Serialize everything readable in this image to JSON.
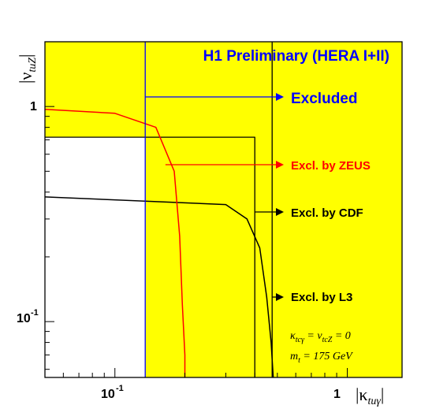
{
  "chart_data": {
    "type": "line",
    "title": "H1 Preliminary (HERA I+II)",
    "xlabel": "|κtuγ|",
    "ylabel": "|νtuZ|",
    "xscale": "log",
    "yscale": "log",
    "xlim": [
      0.05,
      1.72
    ],
    "ylim": [
      0.055,
      2.0
    ],
    "x_ticks": [
      {
        "value": 0.1,
        "label": "10",
        "exp": "-1"
      },
      {
        "value": 1,
        "label": "1",
        "exp": ""
      }
    ],
    "y_ticks": [
      {
        "value": 0.1,
        "label": "10",
        "exp": "-1"
      },
      {
        "value": 1,
        "label": "1",
        "exp": ""
      }
    ],
    "legend_labels": {
      "h1": "Excluded",
      "zeus": "Excl. by ZEUS",
      "cdf": "Excl. by CDF",
      "l3": "Excl. by L3"
    },
    "colors": {
      "excluded_fill": "#ffff00",
      "h1": "#0000ff",
      "zeus": "#ff0000",
      "cdf": "#000000",
      "l3": "#000000"
    },
    "series": [
      {
        "name": "Excl. by L3",
        "x": [
          0.475,
          0.475
        ],
        "y": [
          0.055,
          2.0
        ]
      },
      {
        "name": "Excl. by CDF",
        "x": [
          0.05,
          0.3,
          0.37,
          0.42,
          0.45,
          0.47,
          0.48,
          0.48
        ],
        "y": [
          0.38,
          0.35,
          0.3,
          0.22,
          0.13,
          0.08,
          0.055,
          0.055
        ]
      },
      {
        "name": "Excl. by ZEUS",
        "x": [
          0.05,
          0.1,
          0.15,
          0.18,
          0.19,
          0.195,
          0.2,
          0.2
        ],
        "y": [
          0.97,
          0.93,
          0.8,
          0.5,
          0.25,
          0.12,
          0.07,
          0.055
        ]
      },
      {
        "name": "Excluded",
        "x": [
          0.135,
          0.135
        ],
        "y": [
          0.055,
          2.0
        ]
      },
      {
        "name": "Excl. by CDF",
        "x": [
          0.05,
          0.4,
          0.4
        ],
        "y": [
          0.72,
          0.72,
          0.055
        ]
      }
    ],
    "annotations": [
      {
        "math": "κtcγ = νtcZ = 0"
      },
      {
        "math": "mt = 175 GeV"
      }
    ]
  }
}
